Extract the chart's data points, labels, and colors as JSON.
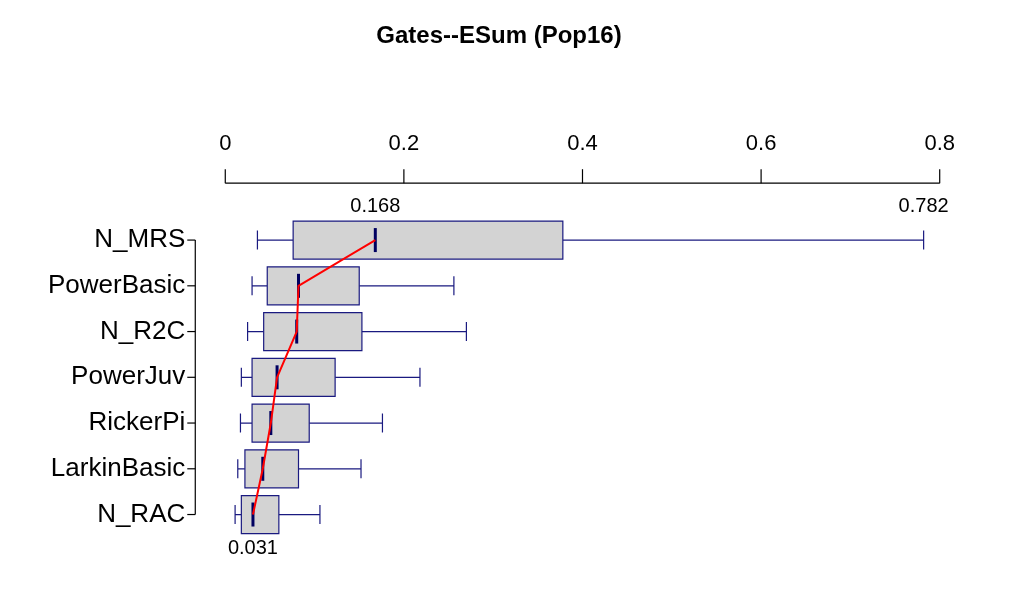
{
  "chart_data": {
    "type": "box",
    "title": "Gates--ESum (Pop16)",
    "orientation": "horizontal",
    "categories": [
      "N_MRS",
      "PowerBasic",
      "N_R2C",
      "PowerJuv",
      "RickerPi",
      "LarkinBasic",
      "N_RAC"
    ],
    "xlim": [
      0,
      0.8
    ],
    "xticks": [
      0,
      0.2,
      0.4,
      0.6,
      0.8
    ],
    "grid": false,
    "series": [
      {
        "type": "box",
        "color": "#d3d3d3",
        "boxes": [
          {
            "low": 0.036,
            "q1": 0.076,
            "median": 0.168,
            "q3": 0.378,
            "high": 0.782
          },
          {
            "low": 0.03,
            "q1": 0.047,
            "median": 0.082,
            "q3": 0.15,
            "high": 0.256
          },
          {
            "low": 0.025,
            "q1": 0.043,
            "median": 0.08,
            "q3": 0.153,
            "high": 0.27
          },
          {
            "low": 0.018,
            "q1": 0.03,
            "median": 0.058,
            "q3": 0.123,
            "high": 0.218
          },
          {
            "low": 0.017,
            "q1": 0.03,
            "median": 0.051,
            "q3": 0.094,
            "high": 0.176
          },
          {
            "low": 0.014,
            "q1": 0.022,
            "median": 0.042,
            "q3": 0.082,
            "high": 0.152
          },
          {
            "low": 0.011,
            "q1": 0.018,
            "median": 0.031,
            "q3": 0.06,
            "high": 0.106
          }
        ]
      },
      {
        "type": "line",
        "color": "#ff0000",
        "values": [
          0.168,
          0.082,
          0.08,
          0.058,
          0.051,
          0.042,
          0.031
        ]
      }
    ],
    "annotations": [
      {
        "text": "0.168",
        "x": 0.168,
        "y": "N_MRS"
      },
      {
        "text": "0.782",
        "x": 0.782,
        "y": "N_MRS"
      },
      {
        "text": "0.031",
        "x": 0.031,
        "y": "N_RAC"
      }
    ]
  }
}
